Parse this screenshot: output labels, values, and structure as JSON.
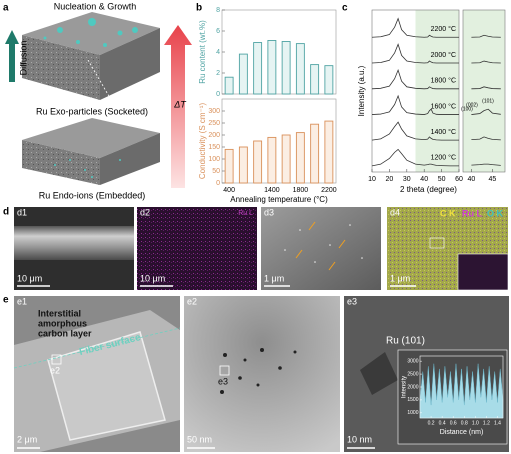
{
  "labels": {
    "a": "a",
    "b": "b",
    "c": "c",
    "d": "d",
    "e": "e"
  },
  "panel_a": {
    "top": "Nucleation & Growth",
    "diffusion": "Diffusion",
    "delta_t": "ΔT",
    "exo": "Ru Exo-particles (Socketed)",
    "endo": "Ru Endo-ions (Embedded)"
  },
  "panel_d": [
    {
      "label": "d1",
      "scale": "10 μm"
    },
    {
      "label": "d2",
      "scale": "10 μm",
      "map": "Ru L"
    },
    {
      "label": "d3",
      "scale": "1 μm"
    },
    {
      "label": "d4",
      "scale": "1 μm",
      "legend": [
        "C K",
        "Ru L",
        "O K"
      ]
    }
  ],
  "panel_e": {
    "e1": {
      "label": "e1",
      "layer": [
        "Interstitial",
        "amorphous",
        "carbon layer"
      ],
      "surface": "Fiber surface",
      "box": "e2",
      "scale": "2 μm"
    },
    "e2": {
      "label": "e2",
      "box": "e3",
      "scale": "50 nm"
    },
    "e3": {
      "label": "e3",
      "ru": "Ru (101)",
      "scale": "10 nm"
    }
  },
  "chart_data": [
    {
      "type": "bar",
      "ylabel": "Ru content (wt.%)",
      "values": [
        1.6,
        3.8,
        4.9,
        5.1,
        5.0,
        4.8,
        2.8,
        2.7
      ],
      "color": "#4fa3a3",
      "fill_color": "#e6f4f3",
      "ylim": [
        0,
        8
      ],
      "yticks": [
        0,
        2,
        4,
        6,
        8
      ]
    },
    {
      "type": "bar",
      "ylabel": "Conductivity (S cm⁻¹)",
      "xlabel": "Annealing temperature (°C)",
      "categories": [
        "400",
        null,
        null,
        "1400",
        null,
        "1800",
        null,
        "2200"
      ],
      "values": [
        140,
        150,
        175,
        190,
        200,
        210,
        245,
        258
      ],
      "color": "#d9905a",
      "fill_color": "#fbeee3",
      "ylim": [
        0,
        350
      ],
      "yticks": [
        0,
        50,
        100,
        150,
        200,
        250,
        300
      ]
    },
    {
      "type": "line",
      "ylabel": "Intensity (a.u.)",
      "xlabel": "2 theta (degree)",
      "x": [
        10,
        15,
        20,
        23,
        25,
        27,
        30,
        35,
        40,
        42,
        43,
        44,
        45,
        47,
        50,
        55,
        60
      ],
      "xlim": [
        10,
        60
      ],
      "xticks": [
        10,
        20,
        30,
        40,
        50,
        60
      ],
      "ylim": [
        0,
        6.6
      ],
      "shade": [
        35,
        60
      ],
      "shade_color": "#e2f0df",
      "zoom_xlim": [
        38,
        48
      ],
      "zoom_xticks": [
        40,
        45
      ],
      "annotations": [
        "(101)",
        "(002)",
        "(100)"
      ],
      "series": [
        {
          "name": "2200 °C",
          "color": "#333333",
          "values": [
            5.49,
            5.51,
            5.6,
            5.9,
            6.25,
            5.8,
            5.57,
            5.51,
            5.49,
            5.5,
            5.57,
            5.53,
            5.5,
            5.49,
            5.49,
            5.49,
            5.49
          ]
        },
        {
          "name": "2000 °C",
          "color": "#333333",
          "values": [
            4.44,
            4.46,
            4.55,
            4.85,
            5.2,
            4.75,
            4.52,
            4.46,
            4.44,
            4.45,
            4.52,
            4.48,
            4.45,
            4.44,
            4.44,
            4.44,
            4.44
          ]
        },
        {
          "name": "1800 °C",
          "color": "#333333",
          "values": [
            3.39,
            3.41,
            3.5,
            3.8,
            4.15,
            3.7,
            3.47,
            3.41,
            3.39,
            3.4,
            3.47,
            3.43,
            3.4,
            3.39,
            3.39,
            3.39,
            3.39
          ]
        },
        {
          "name": "1600 °C",
          "color": "#333333",
          "values": [
            2.34,
            2.36,
            2.45,
            2.75,
            3.1,
            2.65,
            2.42,
            2.36,
            2.34,
            2.38,
            2.5,
            2.56,
            2.4,
            2.35,
            2.34,
            2.34,
            2.34
          ]
        },
        {
          "name": "1400 °C",
          "color": "#333333",
          "values": [
            1.3,
            1.35,
            1.55,
            1.85,
            2.03,
            1.75,
            1.47,
            1.35,
            1.32,
            1.34,
            1.43,
            1.37,
            1.33,
            1.31,
            1.3,
            1.3,
            1.3
          ]
        },
        {
          "name": "1200 °C",
          "color": "#333333",
          "values": [
            0.25,
            0.32,
            0.55,
            0.8,
            0.92,
            0.75,
            0.48,
            0.32,
            0.28,
            0.3,
            0.32,
            0.32,
            0.3,
            0.27,
            0.26,
            0.25,
            0.25
          ]
        }
      ]
    },
    {
      "type": "area",
      "ylabel": "Intensity",
      "xlabel": "Distance (nm)",
      "x": [
        0,
        0.05,
        0.1,
        0.15,
        0.2,
        0.25,
        0.3,
        0.35,
        0.4,
        0.45,
        0.5,
        0.55,
        0.6,
        0.65,
        0.7,
        0.75,
        0.8,
        0.85,
        0.9,
        0.95,
        1,
        1.05,
        1.1,
        1.15,
        1.2,
        1.25,
        1.3,
        1.35,
        1.4,
        1.45,
        1.5
      ],
      "values": [
        1500,
        2600,
        1400,
        2800,
        1300,
        2900,
        1500,
        2700,
        1400,
        2800,
        1600,
        2600,
        1400,
        2900,
        1500,
        2700,
        1300,
        2800,
        1500,
        2600,
        1400,
        2900,
        1600,
        2700,
        1400,
        2800,
        1500,
        2600,
        1400,
        2700,
        1500
      ],
      "color": "#a8dce8",
      "xlim": [
        0,
        1.5
      ],
      "ylim": [
        800,
        3200
      ],
      "xticks": [
        0.2,
        0.4,
        0.6,
        0.8,
        {
          "value": 1,
          "label": "1.0"
        },
        1.2,
        1.4
      ],
      "yticks": [
        1000,
        1500,
        2000,
        2500,
        3000
      ]
    }
  ]
}
